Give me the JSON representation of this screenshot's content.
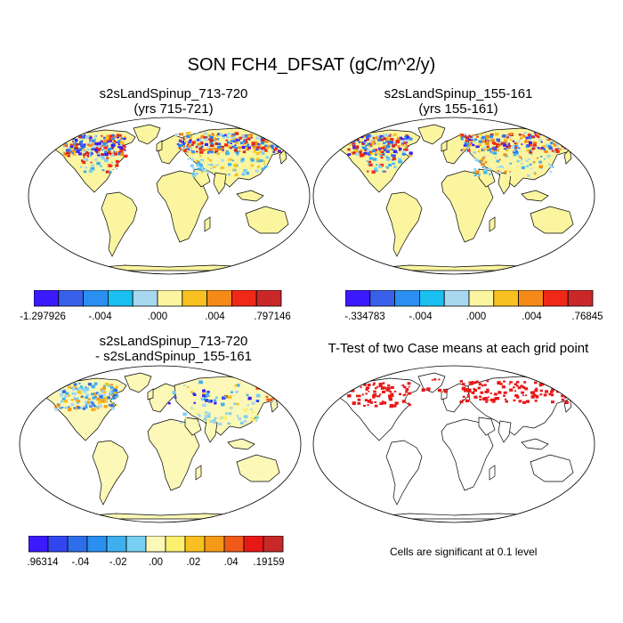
{
  "title": "SON FCH4_DFSAT (gC/m^2/y)",
  "panels": [
    {
      "id": "case1",
      "title_line1": "s2sLandSpinup_713-720",
      "title_line2": "(yrs 715-721)",
      "colorbar": {
        "colors": [
          "#3b1aff",
          "#3860e8",
          "#2a8ff0",
          "#19c0f0",
          "#a8d8f0",
          "#fbf5a0",
          "#f8c020",
          "#f58a18",
          "#f02818",
          "#c82828"
        ],
        "labels": [
          "-1.297926",
          "-.004",
          ".000",
          ".004",
          ".797146"
        ]
      }
    },
    {
      "id": "case2",
      "title_line1": "s2sLandSpinup_155-161",
      "title_line2": "(yrs 155-161)",
      "colorbar": {
        "colors": [
          "#3b1aff",
          "#3860e8",
          "#2a8ff0",
          "#19c0f0",
          "#a8d8f0",
          "#fbf5a0",
          "#f8c020",
          "#f58a18",
          "#f02818",
          "#c82828"
        ],
        "labels": [
          "-.334783",
          "-.004",
          ".000",
          ".004",
          ".76845"
        ]
      }
    },
    {
      "id": "diff",
      "title_line1": "s2sLandSpinup_713-720",
      "title_line2": "- s2sLandSpinup_155-161",
      "colorbar": {
        "colors": [
          "#3b1aff",
          "#3246f0",
          "#2d6ee8",
          "#2a8ff0",
          "#3eb0f0",
          "#78cff2",
          "#fbf8b8",
          "#fbf070",
          "#f8c020",
          "#f59a18",
          "#f05a18",
          "#e81818",
          "#c82828"
        ],
        "labels": [
          ".96314",
          "-.04",
          "-.02",
          ".00",
          ".02",
          ".04",
          ".19159"
        ]
      }
    },
    {
      "id": "ttest",
      "title_line1": "T-Test of two Case means at each grid point",
      "note": "Cells are significant at 0.1 level"
    }
  ]
}
